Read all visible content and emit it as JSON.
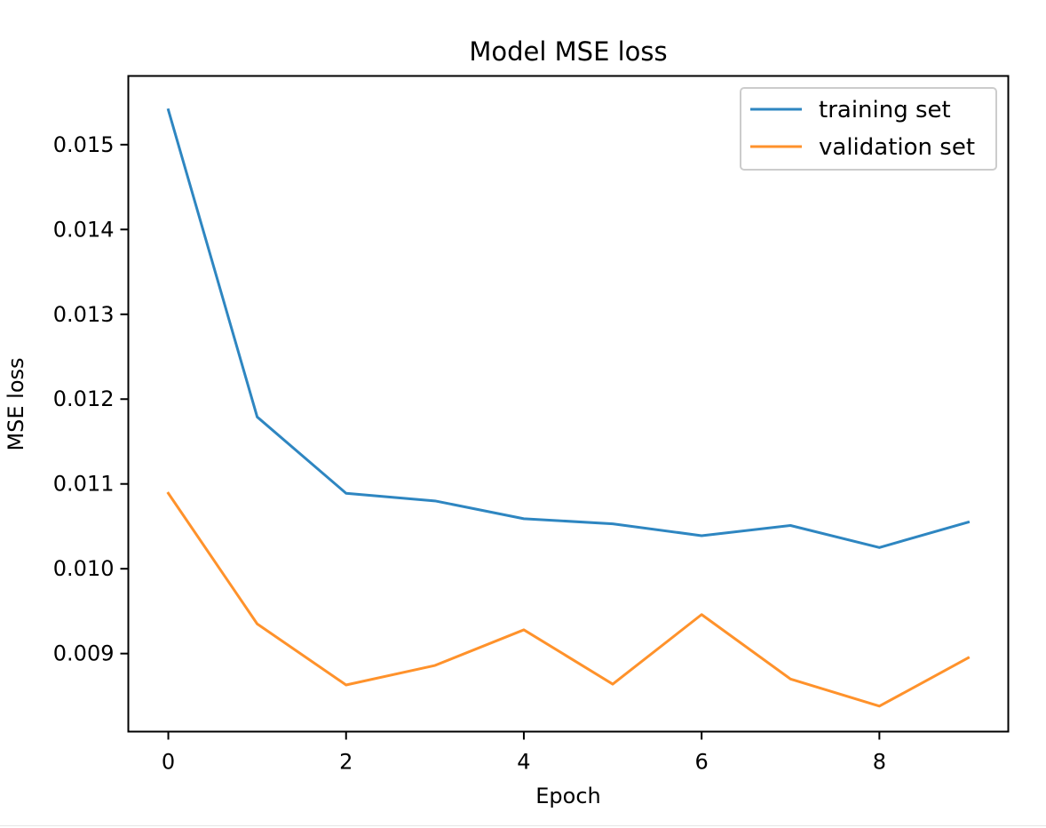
{
  "chart_data": {
    "type": "line",
    "title": "Model MSE loss",
    "xlabel": "Epoch",
    "ylabel": "MSE loss",
    "x": [
      0,
      1,
      2,
      3,
      4,
      5,
      6,
      7,
      8,
      9
    ],
    "xlim": [
      -0.45,
      9.45
    ],
    "ylim": [
      0.00808,
      0.01581
    ],
    "xticks": [
      0,
      2,
      4,
      6,
      8
    ],
    "xtick_labels": [
      "0",
      "2",
      "4",
      "6",
      "8"
    ],
    "yticks": [
      0.009,
      0.01,
      0.011,
      0.012,
      0.013,
      0.014,
      0.015
    ],
    "ytick_labels": [
      "0.009",
      "0.010",
      "0.011",
      "0.012",
      "0.013",
      "0.014",
      "0.015"
    ],
    "grid": false,
    "legend_position": "top-right",
    "series": [
      {
        "name": "training set",
        "color": "#2e86c1",
        "values": [
          0.01541,
          0.01179,
          0.01089,
          0.0108,
          0.01059,
          0.01053,
          0.01039,
          0.01051,
          0.01025,
          0.01055
        ]
      },
      {
        "name": "validation set",
        "color": "#ff922b",
        "values": [
          0.01089,
          0.00935,
          0.00863,
          0.00886,
          0.00928,
          0.00864,
          0.00946,
          0.0087,
          0.00838,
          0.00895
        ]
      }
    ]
  }
}
